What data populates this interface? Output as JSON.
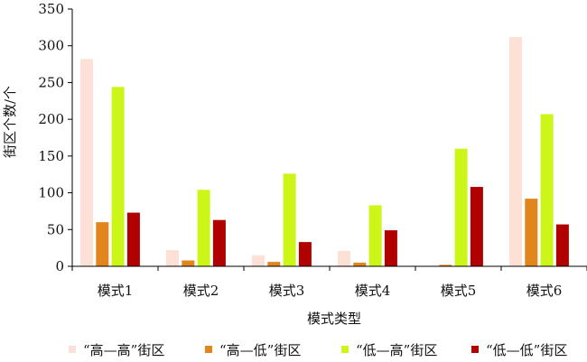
{
  "chart_data": {
    "type": "bar",
    "categories": [
      "模式1",
      "模式2",
      "模式3",
      "模式4",
      "模式5",
      "模式6"
    ],
    "series": [
      {
        "name": "“高—高”街区",
        "color": "#fde0d6",
        "values": [
          282,
          22,
          15,
          21,
          0,
          312
        ]
      },
      {
        "name": "“高—低”街区",
        "color": "#e0861c",
        "values": [
          60,
          8,
          6,
          5,
          2,
          92
        ]
      },
      {
        "name": "“低—高”街区",
        "color": "#ccf518",
        "values": [
          244,
          104,
          126,
          83,
          160,
          207
        ]
      },
      {
        "name": "“低—低”街区",
        "color": "#b00000",
        "values": [
          73,
          63,
          33,
          49,
          108,
          57
        ]
      }
    ],
    "xlabel": "模式类型",
    "ylabel": "街区个数/个",
    "ylim": [
      0,
      350
    ],
    "yticks": [
      0,
      50,
      100,
      150,
      200,
      250,
      300,
      350
    ],
    "grid": false,
    "legend_position": "bottom"
  }
}
